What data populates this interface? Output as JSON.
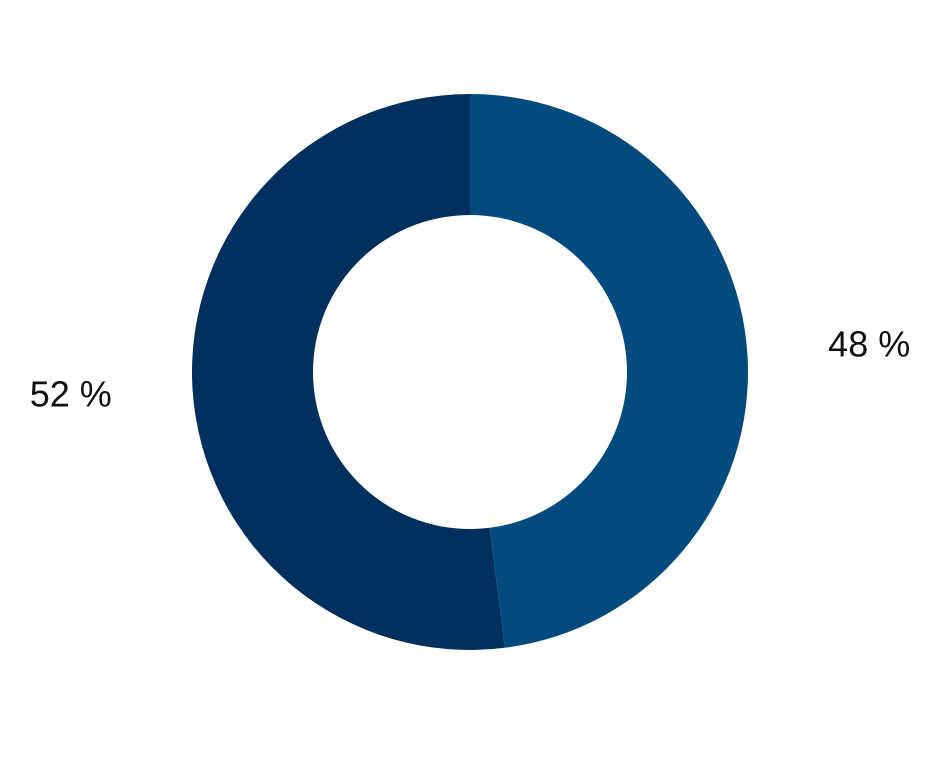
{
  "chart_data": {
    "type": "donut",
    "values": [
      48,
      52
    ],
    "value_labels": [
      "48 %",
      "52 %"
    ],
    "colors": [
      "#034b7f",
      "#02305e"
    ]
  }
}
